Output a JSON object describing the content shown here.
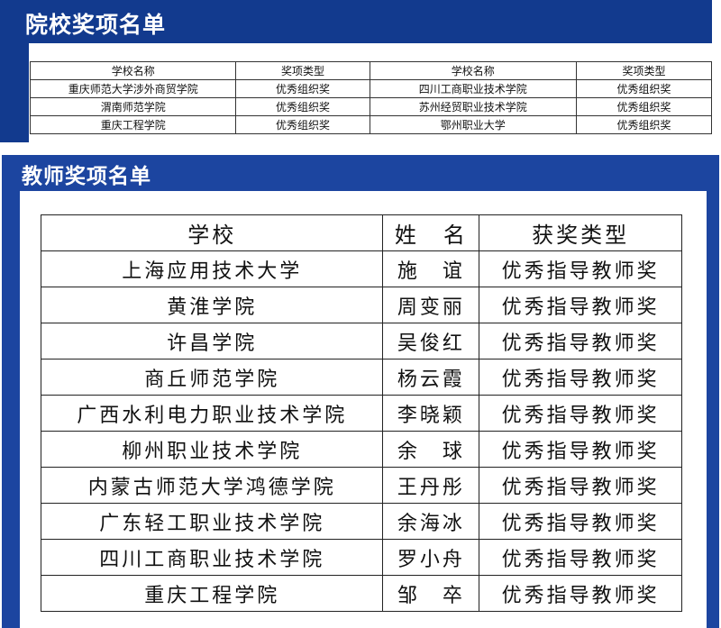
{
  "school_awards": {
    "title": "院校奖项名单",
    "headers": [
      "学校名称",
      "奖项类型",
      "学校名称",
      "奖项类型"
    ],
    "rows": [
      [
        "重庆师范大学涉外商贸学院",
        "优秀组织奖",
        "四川工商职业技术学院",
        "优秀组织奖"
      ],
      [
        "渭南师范学院",
        "优秀组织奖",
        "苏州经贸职业技术学院",
        "优秀组织奖"
      ],
      [
        "重庆工程学院",
        "优秀组织奖",
        "鄂州职业大学",
        "优秀组织奖"
      ]
    ]
  },
  "teacher_awards": {
    "title": "教师奖项名单",
    "headers": [
      "学校",
      "姓　名",
      "获奖类型"
    ],
    "rows": [
      [
        "上海应用技术大学",
        "施　谊",
        "优秀指导教师奖"
      ],
      [
        "黄淮学院",
        "周变丽",
        "优秀指导教师奖"
      ],
      [
        "许昌学院",
        "吴俊红",
        "优秀指导教师奖"
      ],
      [
        "商丘师范学院",
        "杨云霞",
        "优秀指导教师奖"
      ],
      [
        "广西水利电力职业技术学院",
        "李晓颖",
        "优秀指导教师奖"
      ],
      [
        "柳州职业技术学院",
        "余　球",
        "优秀指导教师奖"
      ],
      [
        "内蒙古师范大学鸿德学院",
        "王丹彤",
        "优秀指导教师奖"
      ],
      [
        "广东轻工职业技术学院",
        "余海冰",
        "优秀指导教师奖"
      ],
      [
        "四川工商职业技术学院",
        "罗小舟",
        "优秀指导教师奖"
      ],
      [
        "重庆工程学院",
        "邹　卒",
        "优秀指导教师奖"
      ]
    ]
  },
  "colors": {
    "panel_blue": "#173b92"
  }
}
